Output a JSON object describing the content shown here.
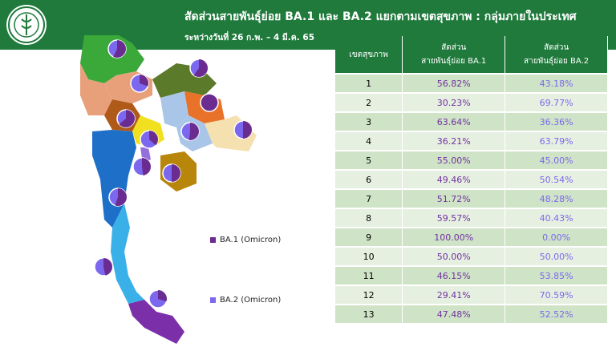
{
  "header": {
    "title": "สัดส่วนสายพันธุ์ย่อย BA.1 และ BA.2 แยกตามเขตสุขภาพ : กลุ่มภายในประเทศ",
    "subtitle": "ระหว่างวันที่ 26 ก.พ. – 4 มี.ค. 65"
  },
  "legend": {
    "ba1": "BA.1 (Omicron)",
    "ba2": "BA.2 (Omicron)"
  },
  "colors": {
    "ba1": "#6a2c91",
    "ba2": "#7b68ee",
    "header": "#1f7a3c"
  },
  "table": {
    "col1": "เขตสุขภาพ",
    "col2_line1": "สัดส่วน",
    "col2_line2": "สายพันธุ์ย่อย BA.1",
    "col3_line1": "สัดส่วน",
    "col3_line2": "สายพันธุ์ย่อย BA.2",
    "rows": [
      {
        "region": "1",
        "ba1": "56.82%",
        "ba2": "43.18%"
      },
      {
        "region": "2",
        "ba1": "30.23%",
        "ba2": "69.77%"
      },
      {
        "region": "3",
        "ba1": "63.64%",
        "ba2": "36.36%"
      },
      {
        "region": "4",
        "ba1": "36.21%",
        "ba2": "63.79%"
      },
      {
        "region": "5",
        "ba1": "55.00%",
        "ba2": "45.00%"
      },
      {
        "region": "6",
        "ba1": "49.46%",
        "ba2": "50.54%"
      },
      {
        "region": "7",
        "ba1": "51.72%",
        "ba2": "48.28%"
      },
      {
        "region": "8",
        "ba1": "59.57%",
        "ba2": "40.43%"
      },
      {
        "region": "9",
        "ba1": "100.00%",
        "ba2": "0.00%"
      },
      {
        "region": "10",
        "ba1": "50.00%",
        "ba2": "50.00%"
      },
      {
        "region": "11",
        "ba1": "46.15%",
        "ba2": "53.85%"
      },
      {
        "region": "12",
        "ba1": "29.41%",
        "ba2": "70.59%"
      },
      {
        "region": "13",
        "ba1": "47.48%",
        "ba2": "52.52%"
      }
    ]
  }
}
